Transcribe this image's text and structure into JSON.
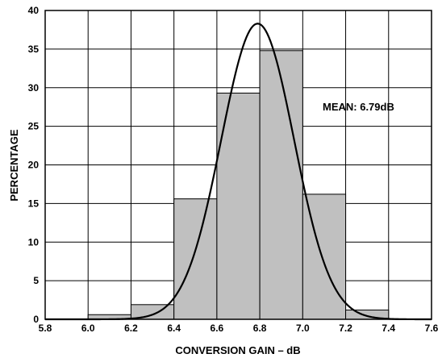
{
  "chart_data": {
    "type": "bar",
    "title": "",
    "xlabel": "CONVERSION GAIN – dB",
    "ylabel": "PERCENTAGE",
    "xlim": [
      5.8,
      7.6
    ],
    "ylim": [
      0,
      40
    ],
    "x_ticks": [
      "5.8",
      "6.0",
      "6.2",
      "6.4",
      "6.6",
      "6.8",
      "7.0",
      "7.2",
      "7.4",
      "7.6"
    ],
    "y_ticks": [
      "0",
      "5",
      "10",
      "15",
      "20",
      "25",
      "30",
      "35",
      "40"
    ],
    "grid": true,
    "bins": [
      {
        "start": 6.0,
        "end": 6.2,
        "value": 0.6
      },
      {
        "start": 6.2,
        "end": 6.4,
        "value": 1.9
      },
      {
        "start": 6.4,
        "end": 6.6,
        "value": 15.6
      },
      {
        "start": 6.6,
        "end": 6.8,
        "value": 29.3
      },
      {
        "start": 6.8,
        "end": 7.0,
        "value": 34.8
      },
      {
        "start": 7.0,
        "end": 7.2,
        "value": 16.2
      },
      {
        "start": 7.2,
        "end": 7.4,
        "value": 1.2
      }
    ],
    "fit_curve": {
      "type": "normal",
      "mean": 6.79,
      "peak": 38.3,
      "sigma": 0.17
    },
    "annotation": "MEAN: 6.79dB",
    "colors": {
      "bar_fill": "#c0c0c0",
      "bar_stroke": "#000000",
      "curve": "#000000",
      "grid": "#000000"
    }
  }
}
